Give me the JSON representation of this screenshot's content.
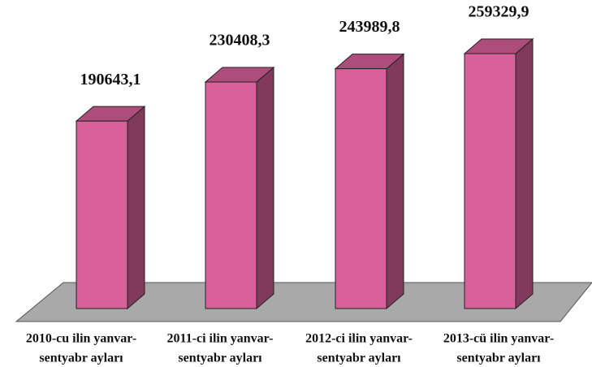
{
  "chart_data": {
    "type": "bar3d",
    "categories": [
      [
        "2010-cu ilin yanvar-",
        "sentyabr ayları"
      ],
      [
        "2011-ci ilin yanvar-",
        "sentyabr ayları"
      ],
      [
        "2012-ci ilin yanvar-",
        "sentyabr ayları"
      ],
      [
        "2013-cü ilin yanvar-",
        "sentyabr ayları"
      ]
    ],
    "values": [
      190643.1,
      230408.3,
      243989.8,
      259329.9
    ],
    "value_labels": [
      "190643,1",
      "230408,3",
      "243989,8",
      "259329,9"
    ],
    "color": "#d9609a"
  }
}
